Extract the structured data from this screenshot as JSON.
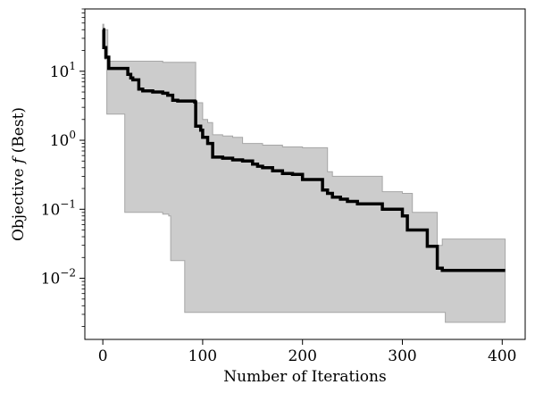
{
  "chart_data": {
    "type": "line",
    "title": "",
    "xlabel": "Number of Iterations",
    "ylabel": {
      "prefix": "Objective ",
      "symbol": "f",
      "suffix": " (Best)"
    },
    "xlim": [
      -18,
      423
    ],
    "ylim": [
      0.0013,
      80
    ],
    "yscale": "log",
    "grid": false,
    "legend": "none",
    "x_ticks": [
      {
        "value": 0,
        "label": "0"
      },
      {
        "value": 100,
        "label": "100"
      },
      {
        "value": 200,
        "label": "200"
      },
      {
        "value": 300,
        "label": "300"
      },
      {
        "value": 400,
        "label": "400"
      }
    ],
    "y_ticks": [
      {
        "value": 10,
        "base": "10",
        "exp": "1"
      },
      {
        "value": 1,
        "base": "10",
        "exp": "0"
      },
      {
        "value": 0.1,
        "base": "10",
        "exp": "−1"
      },
      {
        "value": 0.01,
        "base": "10",
        "exp": "−2"
      }
    ],
    "colors": {
      "line": "#000000",
      "band_fill": "#cccccc",
      "band_edge": "#a6a6a6"
    },
    "series": [
      {
        "role": "best",
        "x": [
          0,
          1,
          3,
          6,
          10,
          20,
          25,
          28,
          30,
          36,
          40,
          50,
          60,
          65,
          70,
          75,
          80,
          90,
          92,
          93,
          98,
          100,
          105,
          110,
          115,
          120,
          130,
          140,
          150,
          155,
          160,
          170,
          180,
          190,
          200,
          210,
          220,
          225,
          230,
          238,
          245,
          255,
          270,
          280,
          290,
          300,
          305,
          310,
          325,
          330,
          335,
          340,
          350,
          360,
          370,
          380,
          390,
          403
        ],
        "y": [
          40,
          22,
          16,
          11,
          11,
          11,
          9,
          8,
          7.5,
          5.5,
          5.2,
          5,
          4.8,
          4.5,
          3.8,
          3.7,
          3.7,
          3.7,
          3.6,
          1.6,
          1.4,
          1.1,
          0.9,
          0.57,
          0.57,
          0.55,
          0.52,
          0.5,
          0.45,
          0.42,
          0.4,
          0.36,
          0.33,
          0.32,
          0.27,
          0.27,
          0.19,
          0.17,
          0.15,
          0.14,
          0.13,
          0.12,
          0.12,
          0.1,
          0.1,
          0.08,
          0.05,
          0.05,
          0.029,
          0.029,
          0.014,
          0.013,
          0.013,
          0.013,
          0.013,
          0.013,
          0.013,
          0.013
        ]
      },
      {
        "role": "upper",
        "x": [
          0,
          1,
          5,
          10,
          20,
          30,
          40,
          60,
          70,
          80,
          90,
          93,
          100,
          105,
          110,
          120,
          130,
          140,
          160,
          180,
          200,
          210,
          220,
          225,
          230,
          250,
          270,
          280,
          300,
          305,
          310,
          320,
          330,
          335,
          340,
          360,
          380,
          403
        ],
        "y": [
          48,
          40,
          14,
          14,
          14,
          14,
          14,
          13.5,
          13.5,
          13.5,
          13.5,
          3.5,
          2,
          1.8,
          1.2,
          1.15,
          1.1,
          0.9,
          0.85,
          0.8,
          0.78,
          0.78,
          0.78,
          0.35,
          0.3,
          0.3,
          0.3,
          0.18,
          0.17,
          0.17,
          0.09,
          0.09,
          0.09,
          0.03,
          0.037,
          0.037,
          0.037,
          0.037
        ]
      },
      {
        "role": "lower",
        "x": [
          0,
          2,
          4,
          20,
          22,
          40,
          60,
          66,
          68,
          75,
          80,
          82,
          100,
          200,
          300,
          340,
          343,
          360,
          380,
          403
        ],
        "y": [
          40,
          15,
          2.4,
          2.4,
          0.09,
          0.09,
          0.085,
          0.08,
          0.018,
          0.018,
          0.018,
          0.0032,
          0.0032,
          0.0032,
          0.0032,
          0.0032,
          0.0023,
          0.0023,
          0.0023,
          0.0023
        ]
      }
    ]
  }
}
